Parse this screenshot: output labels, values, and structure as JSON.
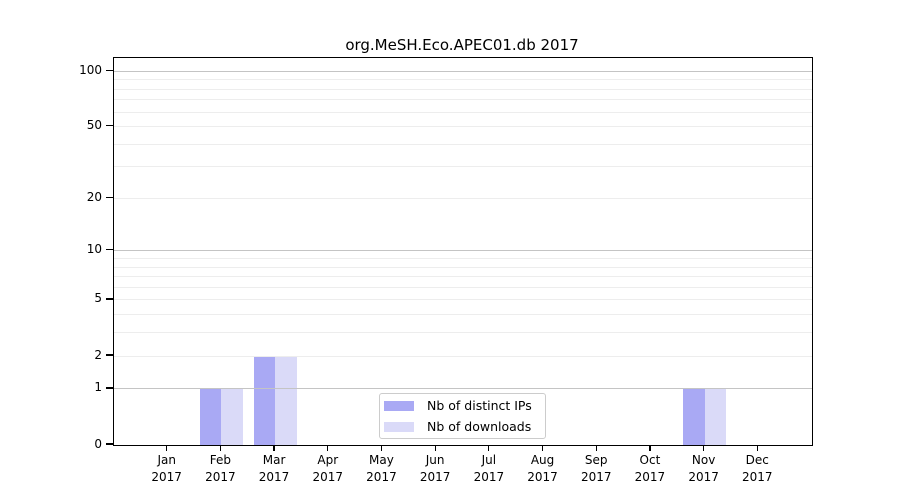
{
  "chart_data": {
    "type": "bar",
    "title": "org.MeSH.Eco.APEC01.db 2017",
    "categories": [
      "Jan",
      "Feb",
      "Mar",
      "Apr",
      "May",
      "Jun",
      "Jul",
      "Aug",
      "Sep",
      "Oct",
      "Nov",
      "Dec"
    ],
    "x_year_label": "2017",
    "series": [
      {
        "name": "Nb of distinct IPs",
        "color": "#a9a9f4",
        "values": [
          0,
          1,
          2,
          0,
          0,
          0,
          0,
          0,
          0,
          0,
          1,
          0
        ]
      },
      {
        "name": "Nb of downloads",
        "color": "#dadaf8",
        "values": [
          0,
          1,
          2,
          0,
          0,
          0,
          0,
          0,
          0,
          0,
          1,
          0
        ]
      }
    ],
    "yscale": "log1p",
    "ylim": [
      0,
      118
    ],
    "yticks": [
      0,
      1,
      2,
      5,
      10,
      20,
      50,
      100
    ],
    "grid_major": [
      1,
      10,
      100
    ],
    "grid_minor": [
      2,
      3,
      4,
      5,
      6,
      7,
      8,
      9,
      20,
      30,
      40,
      50,
      60,
      70,
      80,
      90
    ],
    "legend_position": "inside lower-center",
    "grid": "on"
  },
  "colors": {
    "bar_distinct_ips": "#a9a9f4",
    "bar_downloads": "#dadaf8",
    "grid_major": "#c4c4c4",
    "grid_minor": "#ededed",
    "spine": "#000000",
    "legend_border": "#cccccc"
  }
}
